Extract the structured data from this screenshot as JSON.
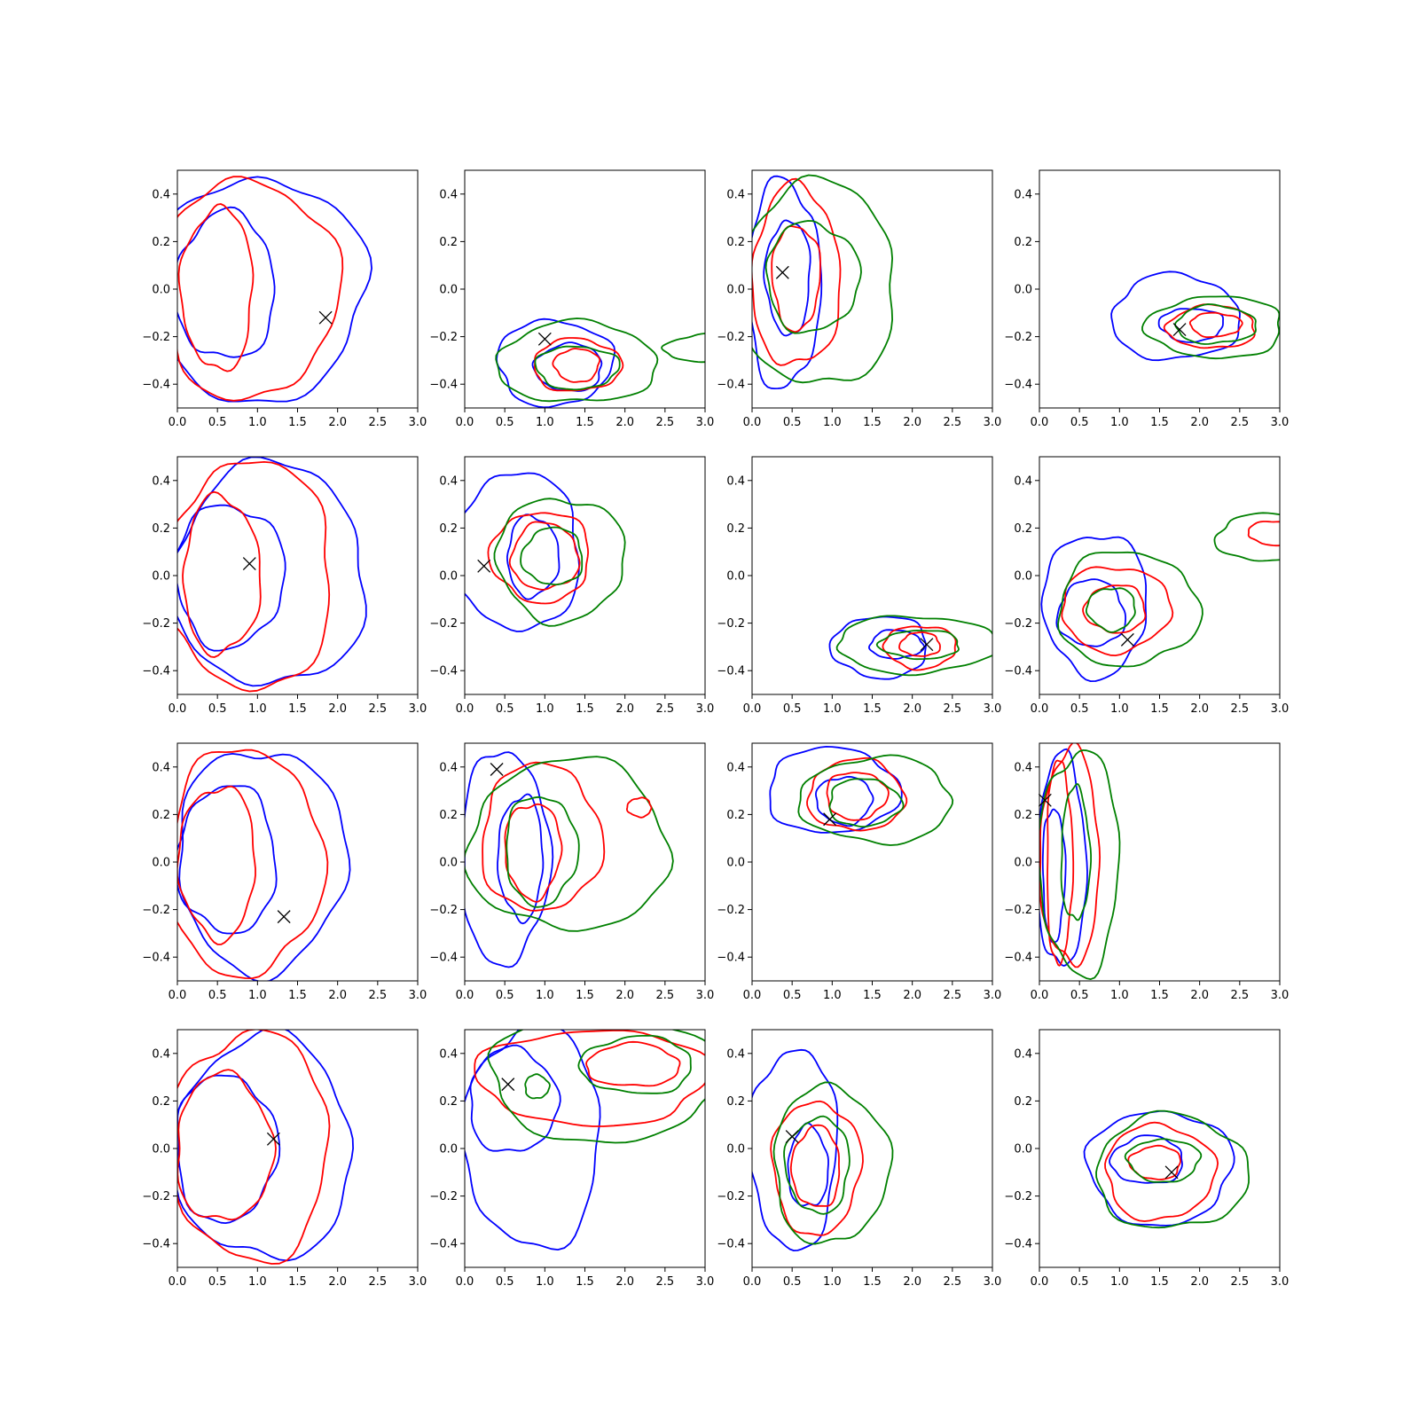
{
  "chart_data": {
    "type": "contour",
    "layout": "4x4 grid",
    "xlim": [
      0,
      3
    ],
    "ylim": [
      -0.5,
      0.5
    ],
    "x_ticks": [
      "0.0",
      "0.5",
      "1.0",
      "1.5",
      "2.0",
      "2.5",
      "3.0"
    ],
    "y_ticks": [
      "−0.4",
      "−0.2",
      "0.0",
      "0.2",
      "0.4"
    ],
    "colors": {
      "blue": "#0000ff",
      "red": "#ff0000",
      "green": "#008000",
      "marker": "#000000"
    },
    "marker_symbol": "x",
    "panels": [
      {
        "marker": [
          1.85,
          -0.12
        ],
        "contours": [
          {
            "color": "blue",
            "cx": 1.0,
            "cy": 0.0,
            "rx": 1.35,
            "ry": 0.47
          },
          {
            "color": "blue",
            "cx": 0.6,
            "cy": 0.01,
            "rx": 0.62,
            "ry": 0.31
          },
          {
            "color": "red",
            "cx": 0.9,
            "cy": 0.0,
            "rx": 1.1,
            "ry": 0.46
          },
          {
            "color": "red",
            "cx": 0.5,
            "cy": 0.0,
            "rx": 0.45,
            "ry": 0.34
          }
        ]
      },
      {
        "marker": [
          1.0,
          -0.21
        ],
        "contours": [
          {
            "color": "blue",
            "cx": 1.12,
            "cy": -0.31,
            "rx": 0.72,
            "ry": 0.18
          },
          {
            "color": "blue",
            "cx": 1.3,
            "cy": -0.33,
            "rx": 0.42,
            "ry": 0.1
          },
          {
            "color": "red",
            "cx": 1.4,
            "cy": -0.32,
            "rx": 0.55,
            "ry": 0.11
          },
          {
            "color": "red",
            "cx": 1.4,
            "cy": -0.32,
            "rx": 0.28,
            "ry": 0.07
          },
          {
            "color": "green",
            "cx": 1.4,
            "cy": -0.31,
            "rx": 1.0,
            "ry": 0.17
          },
          {
            "color": "green",
            "cx": 1.4,
            "cy": -0.33,
            "rx": 0.52,
            "ry": 0.09
          },
          {
            "color": "green",
            "cx": 3.05,
            "cy": -0.25,
            "rx": 0.55,
            "ry": 0.06
          }
        ]
      },
      {
        "marker": [
          0.38,
          0.07
        ],
        "contours": [
          {
            "color": "blue",
            "cx": 0.4,
            "cy": 0.02,
            "rx": 0.45,
            "ry": 0.44
          },
          {
            "color": "blue",
            "cx": 0.45,
            "cy": 0.05,
            "rx": 0.28,
            "ry": 0.24
          },
          {
            "color": "red",
            "cx": 0.55,
            "cy": 0.05,
            "rx": 0.55,
            "ry": 0.38
          },
          {
            "color": "red",
            "cx": 0.55,
            "cy": 0.05,
            "rx": 0.3,
            "ry": 0.22
          },
          {
            "color": "green",
            "cx": 0.8,
            "cy": 0.02,
            "rx": 1.0,
            "ry": 0.43
          },
          {
            "color": "green",
            "cx": 0.75,
            "cy": 0.05,
            "rx": 0.58,
            "ry": 0.23
          }
        ]
      },
      {
        "marker": [
          1.75,
          -0.17
        ],
        "contours": [
          {
            "color": "blue",
            "cx": 1.7,
            "cy": -0.12,
            "rx": 0.8,
            "ry": 0.18
          },
          {
            "color": "blue",
            "cx": 1.9,
            "cy": -0.15,
            "rx": 0.4,
            "ry": 0.07
          },
          {
            "color": "red",
            "cx": 2.15,
            "cy": -0.16,
            "rx": 0.55,
            "ry": 0.09
          },
          {
            "color": "red",
            "cx": 2.2,
            "cy": -0.15,
            "rx": 0.32,
            "ry": 0.05
          },
          {
            "color": "green",
            "cx": 2.2,
            "cy": -0.16,
            "rx": 0.85,
            "ry": 0.13
          },
          {
            "color": "green",
            "cx": 2.2,
            "cy": -0.15,
            "rx": 0.5,
            "ry": 0.08
          }
        ]
      },
      {
        "marker": [
          0.9,
          0.05
        ],
        "contours": [
          {
            "color": "blue",
            "cx": 1.15,
            "cy": 0.0,
            "rx": 1.2,
            "ry": 0.47
          },
          {
            "color": "blue",
            "cx": 0.65,
            "cy": 0.0,
            "rx": 0.68,
            "ry": 0.3
          },
          {
            "color": "red",
            "cx": 0.9,
            "cy": 0.0,
            "rx": 1.05,
            "ry": 0.48
          },
          {
            "color": "red",
            "cx": 0.55,
            "cy": 0.0,
            "rx": 0.48,
            "ry": 0.33
          }
        ]
      },
      {
        "marker": [
          0.24,
          0.04
        ],
        "contours": [
          {
            "color": "blue",
            "cx": 0.65,
            "cy": 0.1,
            "rx": 0.8,
            "ry": 0.33
          },
          {
            "color": "blue",
            "cx": 0.85,
            "cy": 0.08,
            "rx": 0.32,
            "ry": 0.17
          },
          {
            "color": "red",
            "cx": 0.95,
            "cy": 0.08,
            "rx": 0.62,
            "ry": 0.19
          },
          {
            "color": "red",
            "cx": 1.0,
            "cy": 0.08,
            "rx": 0.42,
            "ry": 0.14
          },
          {
            "color": "green",
            "cx": 1.2,
            "cy": 0.07,
            "rx": 0.8,
            "ry": 0.26
          },
          {
            "color": "green",
            "cx": 1.1,
            "cy": 0.08,
            "rx": 0.38,
            "ry": 0.12
          }
        ]
      },
      {
        "marker": [
          2.18,
          -0.29
        ],
        "contours": [
          {
            "color": "blue",
            "cx": 1.6,
            "cy": -0.3,
            "rx": 0.6,
            "ry": 0.13
          },
          {
            "color": "blue",
            "cx": 1.8,
            "cy": -0.29,
            "rx": 0.33,
            "ry": 0.06
          },
          {
            "color": "red",
            "cx": 2.1,
            "cy": -0.3,
            "rx": 0.45,
            "ry": 0.09
          },
          {
            "color": "red",
            "cx": 2.1,
            "cy": -0.29,
            "rx": 0.25,
            "ry": 0.05
          },
          {
            "color": "green",
            "cx": 2.05,
            "cy": -0.29,
            "rx": 1.0,
            "ry": 0.12
          },
          {
            "color": "green",
            "cx": 2.1,
            "cy": -0.29,
            "rx": 0.5,
            "ry": 0.06
          }
        ]
      },
      {
        "marker": [
          1.1,
          -0.27
        ],
        "contours": [
          {
            "color": "blue",
            "cx": 0.7,
            "cy": -0.12,
            "rx": 0.65,
            "ry": 0.3
          },
          {
            "color": "blue",
            "cx": 0.65,
            "cy": -0.16,
            "rx": 0.42,
            "ry": 0.14
          },
          {
            "color": "red",
            "cx": 0.95,
            "cy": -0.14,
            "rx": 0.68,
            "ry": 0.18
          },
          {
            "color": "red",
            "cx": 0.95,
            "cy": -0.14,
            "rx": 0.38,
            "ry": 0.1
          },
          {
            "color": "green",
            "cx": 1.1,
            "cy": -0.14,
            "rx": 0.88,
            "ry": 0.24
          },
          {
            "color": "green",
            "cx": 0.9,
            "cy": -0.14,
            "rx": 0.3,
            "ry": 0.09
          },
          {
            "color": "green",
            "cx": 2.85,
            "cy": 0.16,
            "rx": 0.65,
            "ry": 0.1
          },
          {
            "color": "red",
            "cx": 2.95,
            "cy": 0.18,
            "rx": 0.35,
            "ry": 0.05
          }
        ]
      },
      {
        "marker": [
          1.33,
          -0.23
        ],
        "contours": [
          {
            "color": "blue",
            "cx": 1.05,
            "cy": 0.01,
            "rx": 1.05,
            "ry": 0.47
          },
          {
            "color": "blue",
            "cx": 0.62,
            "cy": 0.01,
            "rx": 0.62,
            "ry": 0.31
          },
          {
            "color": "red",
            "cx": 0.85,
            "cy": 0.0,
            "rx": 0.95,
            "ry": 0.48
          },
          {
            "color": "red",
            "cx": 0.5,
            "cy": 0.0,
            "rx": 0.48,
            "ry": 0.32
          }
        ]
      },
      {
        "marker": [
          0.4,
          0.39
        ],
        "contours": [
          {
            "color": "blue",
            "cx": 0.5,
            "cy": 0.02,
            "rx": 0.55,
            "ry": 0.45
          },
          {
            "color": "blue",
            "cx": 0.7,
            "cy": 0.02,
            "rx": 0.28,
            "ry": 0.26
          },
          {
            "color": "red",
            "cx": 0.95,
            "cy": 0.1,
            "rx": 0.75,
            "ry": 0.31
          },
          {
            "color": "red",
            "cx": 0.85,
            "cy": 0.05,
            "rx": 0.35,
            "ry": 0.2
          },
          {
            "color": "green",
            "cx": 1.3,
            "cy": 0.07,
            "rx": 1.25,
            "ry": 0.36
          },
          {
            "color": "green",
            "cx": 0.95,
            "cy": 0.05,
            "rx": 0.45,
            "ry": 0.23
          },
          {
            "color": "red",
            "cx": 2.18,
            "cy": 0.23,
            "rx": 0.15,
            "ry": 0.04
          }
        ]
      },
      {
        "marker": [
          0.97,
          0.18
        ],
        "contours": [
          {
            "color": "blue",
            "cx": 1.0,
            "cy": 0.3,
            "rx": 0.82,
            "ry": 0.18
          },
          {
            "color": "blue",
            "cx": 1.15,
            "cy": 0.26,
            "rx": 0.35,
            "ry": 0.1
          },
          {
            "color": "red",
            "cx": 1.3,
            "cy": 0.28,
            "rx": 0.6,
            "ry": 0.15
          },
          {
            "color": "red",
            "cx": 1.3,
            "cy": 0.28,
            "rx": 0.38,
            "ry": 0.1
          },
          {
            "color": "green",
            "cx": 1.55,
            "cy": 0.26,
            "rx": 0.95,
            "ry": 0.18
          },
          {
            "color": "green",
            "cx": 1.4,
            "cy": 0.25,
            "rx": 0.45,
            "ry": 0.1
          }
        ]
      },
      {
        "marker": [
          0.07,
          0.26
        ],
        "contours": [
          {
            "color": "blue",
            "cx": 0.28,
            "cy": 0.0,
            "rx": 0.3,
            "ry": 0.45
          },
          {
            "color": "blue",
            "cx": 0.18,
            "cy": -0.05,
            "rx": 0.14,
            "ry": 0.28
          },
          {
            "color": "red",
            "cx": 0.38,
            "cy": 0.02,
            "rx": 0.37,
            "ry": 0.45
          },
          {
            "color": "red",
            "cx": 0.25,
            "cy": 0.0,
            "rx": 0.16,
            "ry": 0.43
          },
          {
            "color": "green",
            "cx": 0.5,
            "cy": 0.0,
            "rx": 0.5,
            "ry": 0.47
          },
          {
            "color": "green",
            "cx": 0.45,
            "cy": 0.03,
            "rx": 0.18,
            "ry": 0.28
          }
        ]
      },
      {
        "marker": [
          1.2,
          0.04
        ],
        "contours": [
          {
            "color": "blue",
            "cx": 1.08,
            "cy": 0.0,
            "rx": 1.1,
            "ry": 0.47
          },
          {
            "color": "blue",
            "cx": 0.6,
            "cy": 0.0,
            "rx": 0.63,
            "ry": 0.31
          },
          {
            "color": "red",
            "cx": 0.9,
            "cy": 0.01,
            "rx": 1.0,
            "ry": 0.48
          },
          {
            "color": "red",
            "cx": 0.58,
            "cy": 0.0,
            "rx": 0.6,
            "ry": 0.31
          }
        ]
      },
      {
        "marker": [
          0.54,
          0.27
        ],
        "contours": [
          {
            "color": "blue",
            "cx": 0.85,
            "cy": 0.05,
            "rx": 0.85,
            "ry": 0.47
          },
          {
            "color": "blue",
            "cx": 0.6,
            "cy": 0.2,
            "rx": 0.55,
            "ry": 0.22
          },
          {
            "color": "red",
            "cx": 1.6,
            "cy": 0.3,
            "rx": 1.45,
            "ry": 0.2
          },
          {
            "color": "red",
            "cx": 2.1,
            "cy": 0.35,
            "rx": 0.58,
            "ry": 0.09
          },
          {
            "color": "green",
            "cx": 1.75,
            "cy": 0.3,
            "rx": 1.45,
            "ry": 0.27
          },
          {
            "color": "green",
            "cx": 2.15,
            "cy": 0.35,
            "rx": 0.7,
            "ry": 0.12
          },
          {
            "color": "green",
            "cx": 0.9,
            "cy": 0.26,
            "rx": 0.15,
            "ry": 0.05
          }
        ]
      },
      {
        "marker": [
          0.5,
          0.05
        ],
        "contours": [
          {
            "color": "blue",
            "cx": 0.52,
            "cy": 0.0,
            "rx": 0.55,
            "ry": 0.42
          },
          {
            "color": "blue",
            "cx": 0.7,
            "cy": -0.08,
            "rx": 0.25,
            "ry": 0.17
          },
          {
            "color": "red",
            "cx": 0.8,
            "cy": -0.08,
            "rx": 0.55,
            "ry": 0.28
          },
          {
            "color": "red",
            "cx": 0.8,
            "cy": -0.08,
            "rx": 0.3,
            "ry": 0.17
          },
          {
            "color": "green",
            "cx": 0.98,
            "cy": -0.07,
            "rx": 0.72,
            "ry": 0.33
          },
          {
            "color": "green",
            "cx": 0.82,
            "cy": -0.07,
            "rx": 0.4,
            "ry": 0.2
          }
        ]
      },
      {
        "marker": [
          1.65,
          -0.1
        ],
        "contours": [
          {
            "color": "blue",
            "cx": 1.5,
            "cy": -0.08,
            "rx": 0.9,
            "ry": 0.24
          },
          {
            "color": "blue",
            "cx": 1.35,
            "cy": -0.05,
            "rx": 0.45,
            "ry": 0.1
          },
          {
            "color": "red",
            "cx": 1.5,
            "cy": -0.1,
            "rx": 0.68,
            "ry": 0.2
          },
          {
            "color": "red",
            "cx": 1.45,
            "cy": -0.06,
            "rx": 0.32,
            "ry": 0.07
          },
          {
            "color": "green",
            "cx": 1.65,
            "cy": -0.1,
            "rx": 0.95,
            "ry": 0.24
          },
          {
            "color": "green",
            "cx": 1.55,
            "cy": -0.05,
            "rx": 0.45,
            "ry": 0.09
          }
        ]
      }
    ]
  }
}
